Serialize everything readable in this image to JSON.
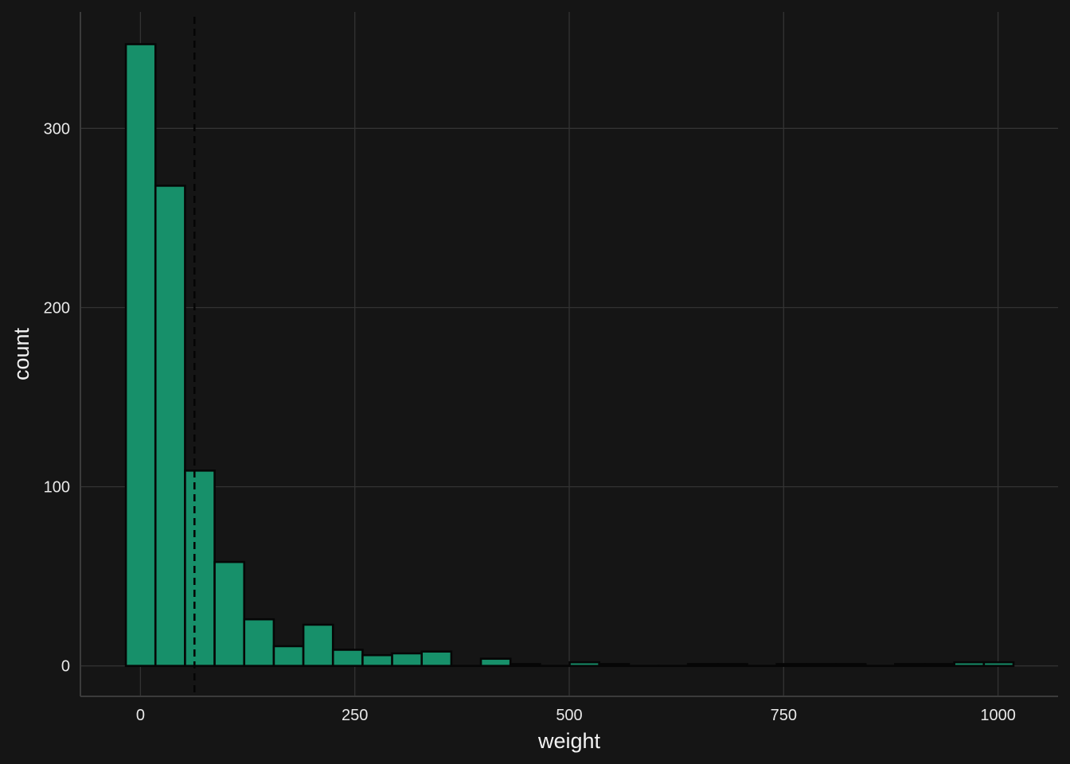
{
  "chart_data": {
    "type": "bar",
    "subtype": "histogram",
    "xlabel": "weight",
    "ylabel": "count",
    "xlim": [
      -70,
      1070
    ],
    "ylim": [
      -17,
      365
    ],
    "x_ticks": [
      0,
      250,
      500,
      750,
      1000
    ],
    "y_ticks": [
      0,
      100,
      200,
      300
    ],
    "grid": true,
    "bin_width": 34.5,
    "bins": [
      {
        "x0": -17,
        "x1": 17.5,
        "count": 347
      },
      {
        "x0": 17.5,
        "x1": 52,
        "count": 268
      },
      {
        "x0": 52,
        "x1": 86.5,
        "count": 109
      },
      {
        "x0": 86.5,
        "x1": 121,
        "count": 58
      },
      {
        "x0": 121,
        "x1": 155.5,
        "count": 26
      },
      {
        "x0": 155.5,
        "x1": 190,
        "count": 11
      },
      {
        "x0": 190,
        "x1": 224.5,
        "count": 23
      },
      {
        "x0": 224.5,
        "x1": 259,
        "count": 9
      },
      {
        "x0": 259,
        "x1": 293.5,
        "count": 6
      },
      {
        "x0": 293.5,
        "x1": 328,
        "count": 7
      },
      {
        "x0": 328,
        "x1": 362.5,
        "count": 8
      },
      {
        "x0": 362.5,
        "x1": 397,
        "count": 0
      },
      {
        "x0": 397,
        "x1": 431.5,
        "count": 4
      },
      {
        "x0": 431.5,
        "x1": 466,
        "count": 1
      },
      {
        "x0": 466,
        "x1": 500.5,
        "count": 0
      },
      {
        "x0": 500.5,
        "x1": 535,
        "count": 2
      },
      {
        "x0": 535,
        "x1": 569.5,
        "count": 1
      },
      {
        "x0": 569.5,
        "x1": 604,
        "count": 0
      },
      {
        "x0": 604,
        "x1": 638.5,
        "count": 0
      },
      {
        "x0": 638.5,
        "x1": 673,
        "count": 1
      },
      {
        "x0": 673,
        "x1": 707.5,
        "count": 1
      },
      {
        "x0": 707.5,
        "x1": 742,
        "count": 0
      },
      {
        "x0": 742,
        "x1": 776.5,
        "count": 1
      },
      {
        "x0": 776.5,
        "x1": 811,
        "count": 1
      },
      {
        "x0": 811,
        "x1": 845.5,
        "count": 1
      },
      {
        "x0": 845.5,
        "x1": 880,
        "count": 0
      },
      {
        "x0": 880,
        "x1": 914.5,
        "count": 1
      },
      {
        "x0": 914.5,
        "x1": 949,
        "count": 1
      },
      {
        "x0": 949,
        "x1": 983.5,
        "count": 2
      },
      {
        "x0": 983.5,
        "x1": 1018,
        "count": 2
      }
    ],
    "reference_line": {
      "x": 63,
      "style": "dashed"
    },
    "colors": {
      "background": "#151515",
      "bar_fill": "#17906a",
      "bar_stroke": "#060606",
      "grid": "#333333",
      "text": "#e8e8e8"
    }
  }
}
